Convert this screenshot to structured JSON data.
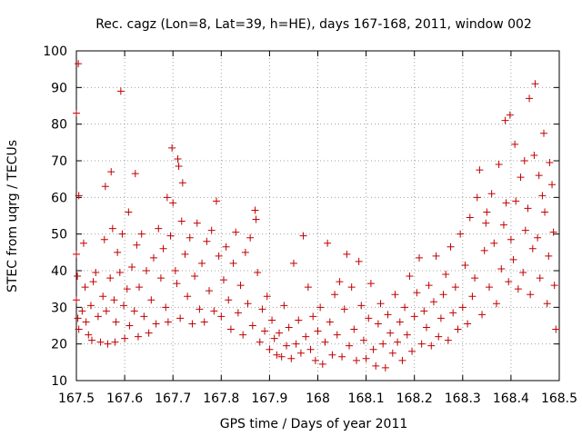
{
  "chart_data": {
    "type": "scatter",
    "title": "Rec. cagz (Lon=8, Lat=39, h=HE), days 167-168, 2011, window 002",
    "xlabel": "GPS time / Days of year 2011",
    "ylabel": "STEC from uqrg / TECUs",
    "xlim": [
      167.5,
      168.5
    ],
    "ylim": [
      10,
      100
    ],
    "x_ticks": [
      "167.5",
      "167.6",
      "167.7",
      "167.8",
      "167.9",
      "168",
      "168.1",
      "168.2",
      "168.3",
      "168.4",
      "168.5"
    ],
    "y_ticks": [
      "10",
      "20",
      "30",
      "40",
      "50",
      "60",
      "70",
      "80",
      "90",
      "100"
    ],
    "grid": true,
    "marker": "+",
    "marker_color": "#c00000",
    "series": [
      {
        "name": "STEC",
        "points": [
          [
            167.5,
            83.0
          ],
          [
            167.504,
            96.5
          ],
          [
            167.505,
            60.5
          ],
          [
            167.5,
            44.5
          ],
          [
            167.502,
            38.5
          ],
          [
            167.5,
            32.0
          ],
          [
            167.503,
            27.0
          ],
          [
            167.505,
            24.0
          ],
          [
            167.512,
            29.0
          ],
          [
            167.515,
            47.5
          ],
          [
            167.518,
            35.5
          ],
          [
            167.52,
            26.0
          ],
          [
            167.525,
            22.5
          ],
          [
            167.53,
            30.5
          ],
          [
            167.532,
            21.0
          ],
          [
            167.535,
            37.0
          ],
          [
            167.54,
            39.5
          ],
          [
            167.545,
            27.5
          ],
          [
            167.55,
            20.5
          ],
          [
            167.555,
            33.0
          ],
          [
            167.558,
            48.5
          ],
          [
            167.56,
            63.0
          ],
          [
            167.562,
            29.0
          ],
          [
            167.565,
            20.0
          ],
          [
            167.57,
            38.0
          ],
          [
            167.572,
            67.0
          ],
          [
            167.575,
            51.5
          ],
          [
            167.578,
            32.0
          ],
          [
            167.58,
            20.5
          ],
          [
            167.582,
            26.0
          ],
          [
            167.585,
            45.0
          ],
          [
            167.59,
            39.5
          ],
          [
            167.592,
            89.0
          ],
          [
            167.595,
            50.0
          ],
          [
            167.598,
            30.5
          ],
          [
            167.6,
            21.5
          ],
          [
            167.605,
            35.0
          ],
          [
            167.608,
            56.0
          ],
          [
            167.61,
            25.0
          ],
          [
            167.615,
            41.0
          ],
          [
            167.62,
            29.0
          ],
          [
            167.622,
            66.5
          ],
          [
            167.625,
            47.0
          ],
          [
            167.628,
            22.0
          ],
          [
            167.63,
            35.5
          ],
          [
            167.635,
            50.0
          ],
          [
            167.64,
            27.5
          ],
          [
            167.645,
            40.0
          ],
          [
            167.65,
            23.0
          ],
          [
            167.655,
            32.0
          ],
          [
            167.66,
            43.5
          ],
          [
            167.665,
            25.5
          ],
          [
            167.67,
            51.5
          ],
          [
            167.675,
            38.0
          ],
          [
            167.68,
            46.0
          ],
          [
            167.685,
            30.0
          ],
          [
            167.688,
            60.0
          ],
          [
            167.69,
            26.0
          ],
          [
            167.695,
            49.5
          ],
          [
            167.698,
            73.5
          ],
          [
            167.7,
            58.5
          ],
          [
            167.705,
            40.0
          ],
          [
            167.708,
            36.5
          ],
          [
            167.71,
            70.5
          ],
          [
            167.712,
            68.5
          ],
          [
            167.715,
            27.0
          ],
          [
            167.718,
            53.5
          ],
          [
            167.72,
            64.0
          ],
          [
            167.725,
            44.5
          ],
          [
            167.73,
            33.0
          ],
          [
            167.735,
            49.0
          ],
          [
            167.74,
            25.5
          ],
          [
            167.745,
            38.5
          ],
          [
            167.75,
            53.0
          ],
          [
            167.755,
            29.5
          ],
          [
            167.76,
            42.0
          ],
          [
            167.765,
            26.0
          ],
          [
            167.77,
            48.0
          ],
          [
            167.775,
            34.5
          ],
          [
            167.78,
            51.0
          ],
          [
            167.785,
            29.0
          ],
          [
            167.79,
            59.0
          ],
          [
            167.795,
            44.0
          ],
          [
            167.8,
            27.5
          ],
          [
            167.805,
            37.5
          ],
          [
            167.81,
            46.5
          ],
          [
            167.815,
            32.0
          ],
          [
            167.82,
            24.0
          ],
          [
            167.825,
            42.0
          ],
          [
            167.83,
            50.5
          ],
          [
            167.835,
            28.5
          ],
          [
            167.84,
            36.0
          ],
          [
            167.845,
            22.5
          ],
          [
            167.85,
            45.0
          ],
          [
            167.855,
            31.0
          ],
          [
            167.86,
            49.0
          ],
          [
            167.865,
            25.0
          ],
          [
            167.87,
            56.5
          ],
          [
            167.872,
            54.0
          ],
          [
            167.875,
            39.5
          ],
          [
            167.88,
            20.5
          ],
          [
            167.885,
            29.5
          ],
          [
            167.89,
            23.5
          ],
          [
            167.895,
            33.0
          ],
          [
            167.9,
            18.5
          ],
          [
            167.905,
            26.5
          ],
          [
            167.91,
            21.5
          ],
          [
            167.915,
            17.0
          ],
          [
            167.92,
            23.0
          ],
          [
            167.925,
            16.5
          ],
          [
            167.93,
            30.5
          ],
          [
            167.935,
            19.5
          ],
          [
            167.94,
            24.5
          ],
          [
            167.945,
            16.0
          ],
          [
            167.95,
            42.0
          ],
          [
            167.955,
            20.0
          ],
          [
            167.96,
            26.5
          ],
          [
            167.965,
            17.5
          ],
          [
            167.97,
            49.5
          ],
          [
            167.975,
            22.0
          ],
          [
            167.98,
            35.5
          ],
          [
            167.985,
            18.5
          ],
          [
            167.99,
            27.5
          ],
          [
            167.995,
            15.5
          ],
          [
            168.0,
            23.5
          ],
          [
            168.005,
            30.0
          ],
          [
            168.01,
            14.5
          ],
          [
            168.015,
            20.5
          ],
          [
            168.02,
            47.5
          ],
          [
            168.025,
            26.0
          ],
          [
            168.03,
            17.0
          ],
          [
            168.035,
            33.5
          ],
          [
            168.04,
            22.5
          ],
          [
            168.045,
            37.0
          ],
          [
            168.05,
            16.5
          ],
          [
            168.055,
            29.5
          ],
          [
            168.06,
            44.5
          ],
          [
            168.065,
            19.5
          ],
          [
            168.07,
            35.5
          ],
          [
            168.075,
            24.0
          ],
          [
            168.08,
            15.5
          ],
          [
            168.085,
            42.5
          ],
          [
            168.09,
            30.5
          ],
          [
            168.095,
            21.0
          ],
          [
            168.1,
            16.0
          ],
          [
            168.105,
            27.0
          ],
          [
            168.11,
            36.5
          ],
          [
            168.115,
            18.5
          ],
          [
            168.12,
            14.0
          ],
          [
            168.125,
            25.5
          ],
          [
            168.13,
            31.0
          ],
          [
            168.135,
            20.0
          ],
          [
            168.14,
            13.5
          ],
          [
            168.145,
            28.0
          ],
          [
            168.15,
            23.0
          ],
          [
            168.155,
            17.5
          ],
          [
            168.16,
            33.5
          ],
          [
            168.165,
            20.5
          ],
          [
            168.17,
            26.0
          ],
          [
            168.175,
            15.5
          ],
          [
            168.18,
            30.0
          ],
          [
            168.185,
            22.5
          ],
          [
            168.19,
            38.5
          ],
          [
            168.195,
            18.0
          ],
          [
            168.2,
            27.5
          ],
          [
            168.205,
            34.0
          ],
          [
            168.21,
            43.5
          ],
          [
            168.215,
            20.0
          ],
          [
            168.22,
            29.0
          ],
          [
            168.225,
            24.5
          ],
          [
            168.23,
            36.0
          ],
          [
            168.235,
            19.5
          ],
          [
            168.24,
            31.5
          ],
          [
            168.245,
            44.0
          ],
          [
            168.25,
            22.0
          ],
          [
            168.255,
            27.0
          ],
          [
            168.26,
            33.5
          ],
          [
            168.265,
            39.0
          ],
          [
            168.27,
            21.0
          ],
          [
            168.275,
            46.5
          ],
          [
            168.28,
            28.5
          ],
          [
            168.285,
            35.5
          ],
          [
            168.29,
            24.0
          ],
          [
            168.295,
            50.0
          ],
          [
            168.3,
            30.0
          ],
          [
            168.305,
            41.5
          ],
          [
            168.31,
            25.5
          ],
          [
            168.315,
            54.5
          ],
          [
            168.32,
            33.0
          ],
          [
            168.325,
            38.0
          ],
          [
            168.33,
            60.0
          ],
          [
            168.335,
            67.5
          ],
          [
            168.34,
            28.0
          ],
          [
            168.345,
            45.5
          ],
          [
            168.348,
            53.0
          ],
          [
            168.35,
            56.0
          ],
          [
            168.355,
            35.5
          ],
          [
            168.36,
            61.0
          ],
          [
            168.365,
            47.5
          ],
          [
            168.37,
            31.0
          ],
          [
            168.375,
            69.0
          ],
          [
            168.38,
            40.5
          ],
          [
            168.385,
            52.5
          ],
          [
            168.388,
            81.0
          ],
          [
            168.39,
            58.5
          ],
          [
            168.395,
            37.0
          ],
          [
            168.398,
            82.5
          ],
          [
            168.4,
            48.5
          ],
          [
            168.405,
            43.0
          ],
          [
            168.408,
            74.5
          ],
          [
            168.41,
            59.0
          ],
          [
            168.415,
            35.0
          ],
          [
            168.42,
            65.5
          ],
          [
            168.425,
            39.5
          ],
          [
            168.428,
            70.0
          ],
          [
            168.43,
            51.0
          ],
          [
            168.435,
            57.0
          ],
          [
            168.438,
            87.0
          ],
          [
            168.44,
            33.5
          ],
          [
            168.445,
            46.0
          ],
          [
            168.448,
            71.5
          ],
          [
            168.45,
            91.0
          ],
          [
            168.455,
            49.0
          ],
          [
            168.458,
            66.0
          ],
          [
            168.46,
            38.0
          ],
          [
            168.465,
            60.5
          ],
          [
            168.468,
            77.5
          ],
          [
            168.47,
            56.0
          ],
          [
            168.475,
            31.0
          ],
          [
            168.478,
            44.0
          ],
          [
            168.48,
            69.5
          ],
          [
            168.485,
            63.5
          ],
          [
            168.488,
            50.5
          ],
          [
            168.49,
            36.0
          ],
          [
            168.493,
            24.0
          ]
        ]
      }
    ]
  }
}
